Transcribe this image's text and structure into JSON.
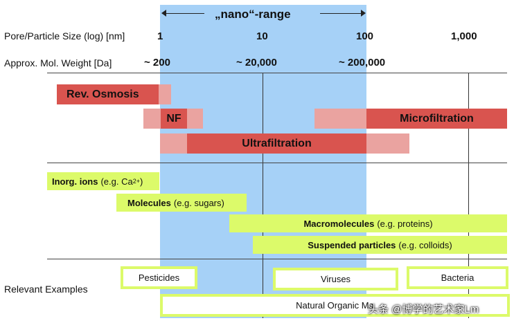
{
  "header": {
    "nano_range": "„nano“-range",
    "row_pore_label": "Pore/Particle Size (log) [nm]",
    "row_mw_label": "Approx. Mol. Weight [Da]",
    "size_ticks": [
      "1",
      "10",
      "100",
      "1,000"
    ],
    "mw_ticks": [
      "~ 200",
      "~ 20,000",
      "~ 200,000"
    ]
  },
  "processes": {
    "rev_osmosis": "Rev. Osmosis",
    "nf": "NF",
    "microfiltration": "Microfiltration",
    "ultrafiltration": "Ultrafiltration"
  },
  "particles": [
    {
      "bold": "Inorg. ions",
      "detail": "(e.g. Ca",
      "sup": "2+",
      "end": ")"
    },
    {
      "bold": "Molecules",
      "detail": "(e.g. sugars)"
    },
    {
      "bold": "Macromolecules",
      "detail": "(e.g. proteins)"
    },
    {
      "bold": "Suspended particles",
      "detail": "(e.g. colloids)"
    }
  ],
  "examples": {
    "label": "Relevant Examples",
    "items": [
      "Pesticides",
      "Viruses",
      "Bacteria",
      "Natural Organic Ma"
    ]
  },
  "watermark": "头条 @博学的艺术家Lm",
  "colors": {
    "nano_band": "#a6d1f7",
    "membrane_dark": "#d9544f",
    "membrane_light": "#eaa3a0",
    "particle_green": "#dcfa6a"
  }
}
